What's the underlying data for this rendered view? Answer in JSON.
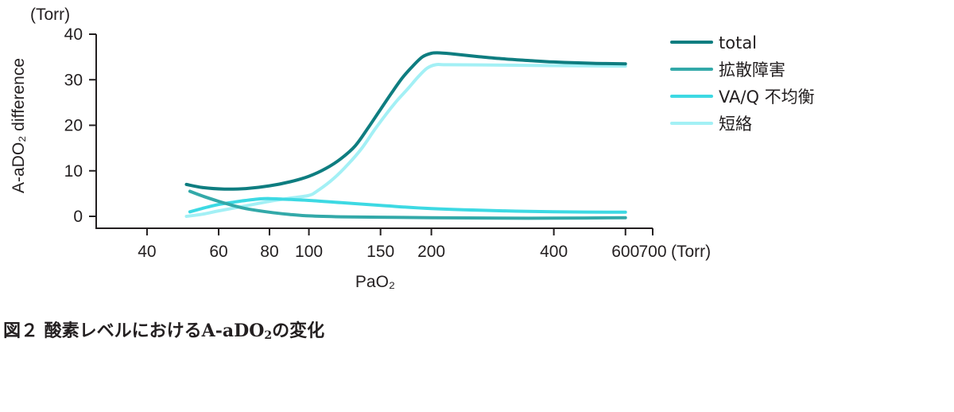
{
  "chart_data": {
    "type": "line",
    "y_unit_label": "(Torr)",
    "x_unit_label": "(Torr)",
    "ylabel": "A-aDO₂ difference",
    "xlabel": "PaO₂",
    "x_scale": "log",
    "xlim": [
      30,
      700
    ],
    "ylim": [
      -3,
      40
    ],
    "x_ticks": [
      40,
      60,
      80,
      100,
      150,
      200,
      400,
      600,
      700
    ],
    "x_tick_labels": [
      "40",
      "60",
      "80",
      "100",
      "150",
      "200",
      "400",
      "600",
      "700"
    ],
    "y_ticks": [
      0,
      10,
      20,
      30,
      40
    ],
    "y_tick_labels": [
      "0",
      "10",
      "20",
      "30",
      "40"
    ],
    "legend_position": "right",
    "grid": false,
    "series": [
      {
        "name": "total",
        "color": "#0e7d80",
        "points": [
          [
            50,
            7
          ],
          [
            55,
            6.3
          ],
          [
            62,
            6
          ],
          [
            70,
            6.1
          ],
          [
            80,
            6.7
          ],
          [
            90,
            7.6
          ],
          [
            100,
            8.8
          ],
          [
            110,
            10.5
          ],
          [
            120,
            12.7
          ],
          [
            130,
            15.5
          ],
          [
            140,
            19.5
          ],
          [
            150,
            23.5
          ],
          [
            160,
            27.2
          ],
          [
            170,
            30.5
          ],
          [
            180,
            33
          ],
          [
            190,
            35
          ],
          [
            200,
            35.8
          ],
          [
            210,
            35.9
          ],
          [
            230,
            35.6
          ],
          [
            260,
            35.1
          ],
          [
            300,
            34.6
          ],
          [
            350,
            34.2
          ],
          [
            400,
            33.9
          ],
          [
            500,
            33.6
          ],
          [
            600,
            33.5
          ]
        ]
      },
      {
        "name": "拡散障害",
        "color": "#33a9a9",
        "points": [
          [
            51,
            5.5
          ],
          [
            55,
            4.4
          ],
          [
            60,
            3.3
          ],
          [
            65,
            2.4
          ],
          [
            70,
            1.7
          ],
          [
            80,
            0.9
          ],
          [
            90,
            0.4
          ],
          [
            100,
            0.1
          ],
          [
            120,
            -0.1
          ],
          [
            150,
            -0.2
          ],
          [
            200,
            -0.3
          ],
          [
            300,
            -0.4
          ],
          [
            400,
            -0.4
          ],
          [
            600,
            -0.3
          ]
        ]
      },
      {
        "name": "VA/Q 不均衡",
        "color": "#3dd9e3",
        "points": [
          [
            51,
            1
          ],
          [
            55,
            1.8
          ],
          [
            60,
            2.6
          ],
          [
            65,
            3.1
          ],
          [
            70,
            3.5
          ],
          [
            75,
            3.8
          ],
          [
            80,
            3.9
          ],
          [
            90,
            3.7
          ],
          [
            100,
            3.5
          ],
          [
            120,
            3.0
          ],
          [
            150,
            2.4
          ],
          [
            200,
            1.7
          ],
          [
            300,
            1.2
          ],
          [
            400,
            1.0
          ],
          [
            600,
            0.9
          ]
        ]
      },
      {
        "name": "短絡",
        "color": "#a3f0f5",
        "points": [
          [
            50,
            0
          ],
          [
            55,
            0.5
          ],
          [
            60,
            1.2
          ],
          [
            70,
            2.3
          ],
          [
            80,
            3.3
          ],
          [
            90,
            4
          ],
          [
            100,
            4.6
          ],
          [
            105,
            5.6
          ],
          [
            115,
            8.3
          ],
          [
            125,
            11.5
          ],
          [
            135,
            15
          ],
          [
            145,
            19
          ],
          [
            155,
            22.5
          ],
          [
            165,
            25.5
          ],
          [
            175,
            28
          ],
          [
            185,
            30.5
          ],
          [
            195,
            32.5
          ],
          [
            205,
            33.3
          ],
          [
            220,
            33.3
          ],
          [
            300,
            33.2
          ],
          [
            400,
            33.1
          ],
          [
            600,
            33
          ]
        ]
      }
    ]
  },
  "caption": {
    "prefix": "図２ 酸素レベルにおけるA-aDO",
    "subscript": "2",
    "suffix": "の変化"
  }
}
